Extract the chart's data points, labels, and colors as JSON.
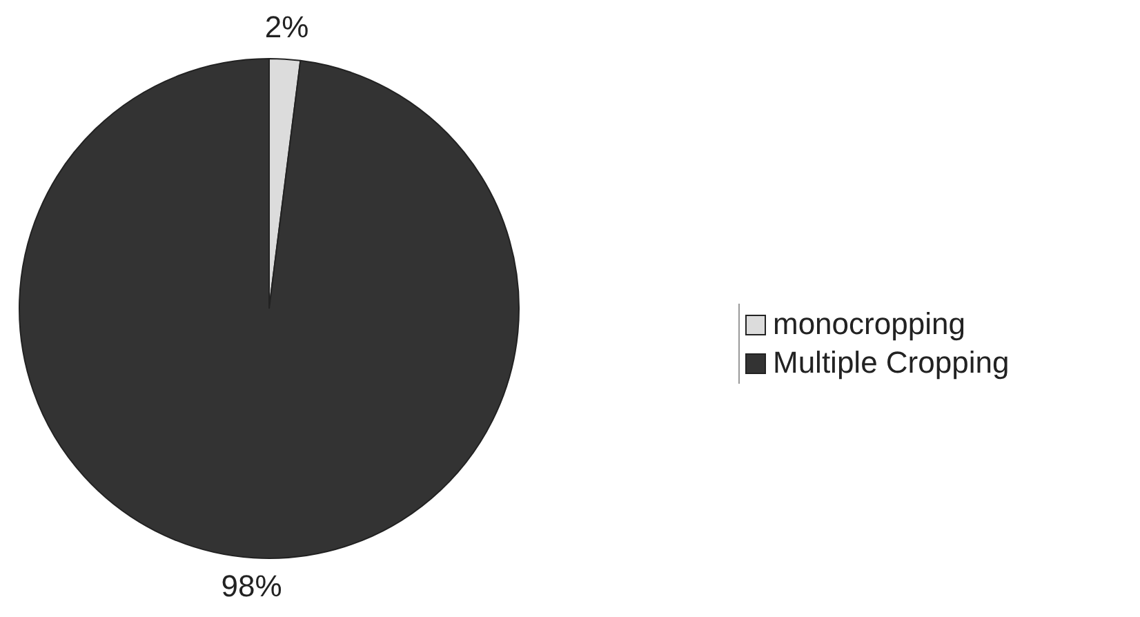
{
  "chart_data": {
    "type": "pie",
    "categories": [
      "monocropping",
      "Multiple Cropping"
    ],
    "values": [
      2,
      98
    ],
    "colors": [
      "#dcdcdc",
      "#333333"
    ],
    "value_labels": [
      "2%",
      "98%"
    ],
    "legend": "right"
  }
}
